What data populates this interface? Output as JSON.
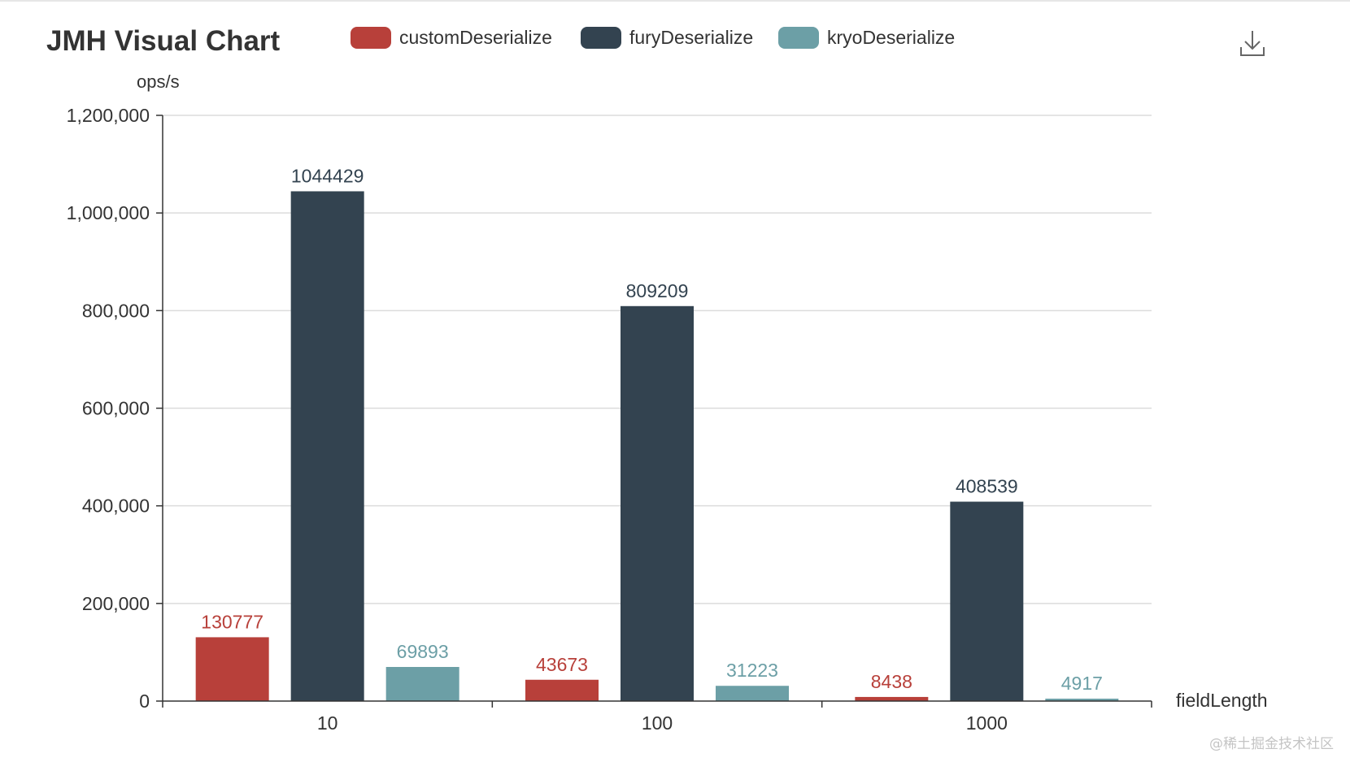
{
  "chart_data": {
    "type": "bar",
    "title": "JMH Visual Chart",
    "xlabel": "fieldLength",
    "ylabel": "ops/s",
    "categories": [
      "10",
      "100",
      "1000"
    ],
    "ylim": [
      0,
      1200000
    ],
    "yticks": [
      0,
      200000,
      400000,
      600000,
      800000,
      1000000,
      1200000
    ],
    "ytick_labels": [
      "0",
      "200,000",
      "400,000",
      "600,000",
      "800,000",
      "1,000,000",
      "1,200,000"
    ],
    "grid": true,
    "legend_position": "top",
    "series": [
      {
        "name": "customDeserialize",
        "color": "#b8403a",
        "values": [
          130777,
          43673,
          8438
        ]
      },
      {
        "name": "furyDeserialize",
        "color": "#334350",
        "values": [
          1044429,
          809209,
          408539
        ]
      },
      {
        "name": "kryoDeserialize",
        "color": "#6c9fa6",
        "values": [
          69893,
          31223,
          4917
        ]
      }
    ]
  },
  "toolbar": {
    "download_icon": "download-icon"
  },
  "watermark": "@稀土掘金技术社区",
  "colors": {
    "axis": "#333333",
    "grid": "#dcdcdc",
    "text": "#333333"
  }
}
